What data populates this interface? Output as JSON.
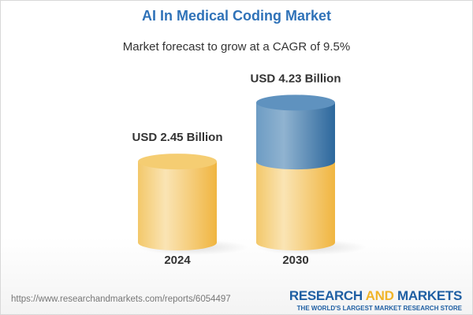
{
  "title": "AI In Medical Coding Market",
  "subtitle": "Market forecast to grow at a CAGR of 9.5%",
  "chart_data": {
    "type": "bar",
    "style": "3d-cylinder",
    "categories": [
      "2024",
      "2030"
    ],
    "values": [
      2.45,
      4.23
    ],
    "data_labels": [
      "USD 2.45 Billion",
      "USD 4.23 Billion"
    ],
    "unit": "USD Billion",
    "colors": {
      "base": "#f2c45a",
      "growth": "#4f86b8"
    }
  },
  "footer": {
    "url": "https://www.researchandmarkets.com/reports/6054497",
    "logo": {
      "part1": "RESEARCH ",
      "part2": "AND",
      "part3": " MARKETS",
      "tagline": "THE WORLD'S LARGEST MARKET RESEARCH STORE"
    }
  }
}
